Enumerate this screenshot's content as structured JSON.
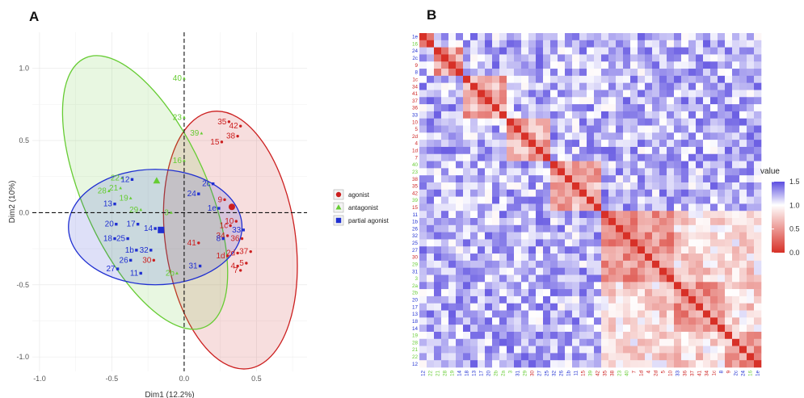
{
  "colors": {
    "agonist": "#cc1f1f",
    "antagonist": "#66cc33",
    "partial_agonist": "#1f2fd1",
    "low": "#d73027",
    "mid": "#ffffff",
    "high": "#5b4de0"
  },
  "chart_data": [
    {
      "panel": "A",
      "type": "scatter",
      "xlabel": "Dim1 (12.2%)",
      "ylabel": "Dim2 (10%)",
      "xlim": [
        -1.05,
        0.85
      ],
      "ylim": [
        -1.1,
        1.25
      ],
      "xticks": [
        "-1.0",
        "-0.5",
        "0.0",
        "0.5"
      ],
      "yticks": [
        "1.0",
        "0.5",
        "0.0",
        "-0.5",
        "-1.0"
      ],
      "grid": true,
      "legend_position": "right",
      "legend": [
        "agonist",
        "antagonist",
        "partial agonist"
      ],
      "ellipses": [
        {
          "group": "agonist",
          "cx": 0.32,
          "cy": -0.19,
          "rx": 0.45,
          "ry": 0.9,
          "angle": -8
        },
        {
          "group": "antagonist",
          "cx": -0.27,
          "cy": 0.14,
          "rx": 0.43,
          "ry": 1.02,
          "angle": -24
        },
        {
          "group": "partial_agonist",
          "cx": -0.2,
          "cy": -0.1,
          "rx": 0.6,
          "ry": 0.4,
          "angle": 0
        }
      ],
      "centroids": [
        {
          "group": "agonist",
          "x": 0.33,
          "y": 0.04
        },
        {
          "group": "antagonist",
          "x": -0.19,
          "y": 0.22
        },
        {
          "group": "partial_agonist",
          "x": -0.16,
          "y": -0.12
        }
      ],
      "points": [
        {
          "label": "35",
          "group": "agonist",
          "x": 0.31,
          "y": 0.63
        },
        {
          "label": "42",
          "group": "agonist",
          "x": 0.39,
          "y": 0.6
        },
        {
          "label": "38",
          "group": "agonist",
          "x": 0.37,
          "y": 0.53
        },
        {
          "label": "15",
          "group": "agonist",
          "x": 0.26,
          "y": 0.49
        },
        {
          "label": "9",
          "group": "agonist",
          "x": 0.28,
          "y": 0.09
        },
        {
          "label": "1e",
          "group": "partial_agonist",
          "x": 0.24,
          "y": 0.03
        },
        {
          "label": "10",
          "group": "agonist",
          "x": 0.36,
          "y": -0.06
        },
        {
          "label": "1c",
          "group": "agonist",
          "x": 0.32,
          "y": -0.09
        },
        {
          "label": "33",
          "group": "partial_agonist",
          "x": 0.41,
          "y": -0.12
        },
        {
          "label": "34",
          "group": "agonist",
          "x": 0.3,
          "y": -0.16
        },
        {
          "label": "8",
          "group": "partial_agonist",
          "x": 0.27,
          "y": -0.18
        },
        {
          "label": "36",
          "group": "agonist",
          "x": 0.4,
          "y": -0.18
        },
        {
          "label": "41",
          "group": "agonist",
          "x": 0.1,
          "y": -0.21
        },
        {
          "label": "2d",
          "group": "agonist",
          "x": 0.37,
          "y": -0.28
        },
        {
          "label": "1d",
          "group": "agonist",
          "x": 0.3,
          "y": -0.3
        },
        {
          "label": "37",
          "group": "agonist",
          "x": 0.46,
          "y": -0.27
        },
        {
          "label": "5",
          "group": "agonist",
          "x": 0.43,
          "y": -0.35
        },
        {
          "label": "4",
          "group": "agonist",
          "x": 0.37,
          "y": -0.37
        },
        {
          "label": "7",
          "group": "agonist",
          "x": 0.39,
          "y": -0.4
        },
        {
          "label": "40",
          "group": "antagonist",
          "x": 0.0,
          "y": 0.93
        },
        {
          "label": "23",
          "group": "antagonist",
          "x": 0.0,
          "y": 0.66
        },
        {
          "label": "39",
          "group": "antagonist",
          "x": 0.12,
          "y": 0.55
        },
        {
          "label": "16",
          "group": "antagonist",
          "x": 0.0,
          "y": 0.36
        },
        {
          "label": "22",
          "group": "antagonist",
          "x": -0.43,
          "y": 0.24
        },
        {
          "label": "28",
          "group": "antagonist",
          "x": -0.52,
          "y": 0.15
        },
        {
          "label": "21",
          "group": "antagonist",
          "x": -0.44,
          "y": 0.17
        },
        {
          "label": "19",
          "group": "antagonist",
          "x": -0.37,
          "y": 0.1
        },
        {
          "label": "29",
          "group": "antagonist",
          "x": -0.3,
          "y": 0.02
        },
        {
          "label": "3",
          "group": "antagonist",
          "x": -0.09,
          "y": 0.0
        },
        {
          "label": "2b",
          "group": "antagonist",
          "x": -0.05,
          "y": -0.42
        },
        {
          "label": "2c",
          "group": "partial_agonist",
          "x": 0.2,
          "y": 0.2
        },
        {
          "label": "24",
          "group": "partial_agonist",
          "x": 0.1,
          "y": 0.13
        },
        {
          "label": "12",
          "group": "partial_agonist",
          "x": -0.36,
          "y": 0.23
        },
        {
          "label": "13",
          "group": "partial_agonist",
          "x": -0.48,
          "y": 0.06
        },
        {
          "label": "20",
          "group": "partial_agonist",
          "x": -0.47,
          "y": -0.08
        },
        {
          "label": "14",
          "group": "partial_agonist",
          "x": -0.2,
          "y": -0.11
        },
        {
          "label": "17",
          "group": "partial_agonist",
          "x": -0.32,
          "y": -0.08
        },
        {
          "label": "18",
          "group": "partial_agonist",
          "x": -0.48,
          "y": -0.18
        },
        {
          "label": "25",
          "group": "partial_agonist",
          "x": -0.39,
          "y": -0.18
        },
        {
          "label": "1b",
          "group": "partial_agonist",
          "x": -0.33,
          "y": -0.26
        },
        {
          "label": "32",
          "group": "partial_agonist",
          "x": -0.23,
          "y": -0.26
        },
        {
          "label": "26",
          "group": "partial_agonist",
          "x": -0.37,
          "y": -0.33
        },
        {
          "label": "27",
          "group": "partial_agonist",
          "x": -0.46,
          "y": -0.39
        },
        {
          "label": "30",
          "group": "agonist",
          "x": -0.21,
          "y": -0.33
        },
        {
          "label": "11",
          "group": "partial_agonist",
          "x": -0.3,
          "y": -0.42
        },
        {
          "label": "31",
          "group": "partial_agonist",
          "x": 0.11,
          "y": -0.37
        }
      ]
    },
    {
      "panel": "B",
      "type": "heatmap",
      "colorbar_title": "value",
      "colorbar_ticks": [
        "1.5",
        "1.0",
        "0.5",
        "0.0"
      ],
      "colorbar_range": [
        0.0,
        1.5
      ],
      "row_labels": [
        {
          "t": "1e",
          "g": "p"
        },
        {
          "t": "16",
          "g": "n"
        },
        {
          "t": "24",
          "g": "p"
        },
        {
          "t": "2c",
          "g": "p"
        },
        {
          "t": "9",
          "g": "a"
        },
        {
          "t": "8",
          "g": "p"
        },
        {
          "t": "1c",
          "g": "a"
        },
        {
          "t": "34",
          "g": "a"
        },
        {
          "t": "41",
          "g": "a"
        },
        {
          "t": "37",
          "g": "a"
        },
        {
          "t": "36",
          "g": "a"
        },
        {
          "t": "33",
          "g": "p"
        },
        {
          "t": "10",
          "g": "a"
        },
        {
          "t": "5",
          "g": "a"
        },
        {
          "t": "2d",
          "g": "a"
        },
        {
          "t": "4",
          "g": "a"
        },
        {
          "t": "1d",
          "g": "a"
        },
        {
          "t": "7",
          "g": "a"
        },
        {
          "t": "40",
          "g": "n"
        },
        {
          "t": "23",
          "g": "n"
        },
        {
          "t": "38",
          "g": "a"
        },
        {
          "t": "35",
          "g": "a"
        },
        {
          "t": "42",
          "g": "a"
        },
        {
          "t": "39",
          "g": "n"
        },
        {
          "t": "15",
          "g": "a"
        },
        {
          "t": "11",
          "g": "p"
        },
        {
          "t": "1b",
          "g": "p"
        },
        {
          "t": "26",
          "g": "p"
        },
        {
          "t": "32",
          "g": "p"
        },
        {
          "t": "25",
          "g": "p"
        },
        {
          "t": "27",
          "g": "p"
        },
        {
          "t": "30",
          "g": "a"
        },
        {
          "t": "29",
          "g": "n"
        },
        {
          "t": "31",
          "g": "p"
        },
        {
          "t": "3",
          "g": "n"
        },
        {
          "t": "2a",
          "g": "n"
        },
        {
          "t": "2b",
          "g": "n"
        },
        {
          "t": "20",
          "g": "p"
        },
        {
          "t": "17",
          "g": "p"
        },
        {
          "t": "13",
          "g": "p"
        },
        {
          "t": "18",
          "g": "p"
        },
        {
          "t": "14",
          "g": "p"
        },
        {
          "t": "19",
          "g": "n"
        },
        {
          "t": "28",
          "g": "n"
        },
        {
          "t": "21",
          "g": "n"
        },
        {
          "t": "22",
          "g": "n"
        },
        {
          "t": "12",
          "g": "p"
        }
      ],
      "clusters": [
        [
          0,
          2
        ],
        [
          2,
          6
        ],
        [
          6,
          12
        ],
        [
          12,
          18
        ],
        [
          18,
          25
        ],
        [
          25,
          35
        ],
        [
          35,
          42
        ],
        [
          42,
          47
        ]
      ]
    }
  ]
}
